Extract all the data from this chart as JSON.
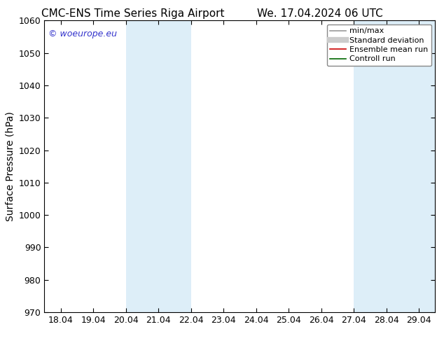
{
  "title_left": "CMC-ENS Time Series Riga Airport",
  "title_right": "We. 17.04.2024 06 UTC",
  "ylabel": "Surface Pressure (hPa)",
  "ylim": [
    970,
    1060
  ],
  "yticks": [
    970,
    980,
    990,
    1000,
    1010,
    1020,
    1030,
    1040,
    1050,
    1060
  ],
  "xtick_labels": [
    "18.04",
    "19.04",
    "20.04",
    "21.04",
    "22.04",
    "23.04",
    "24.04",
    "25.04",
    "26.04",
    "27.04",
    "28.04",
    "29.04"
  ],
  "shaded_bands": [
    {
      "xstart": 2.0,
      "xend": 4.0,
      "color": "#ddeef8"
    },
    {
      "xstart": 9.0,
      "xend": 11.5,
      "color": "#ddeef8"
    }
  ],
  "legend_entries": [
    {
      "label": "min/max",
      "color": "#999999",
      "lw": 1.2
    },
    {
      "label": "Standard deviation",
      "color": "#cccccc",
      "lw": 6
    },
    {
      "label": "Ensemble mean run",
      "color": "#cc0000",
      "lw": 1.2
    },
    {
      "label": "Controll run",
      "color": "#006600",
      "lw": 1.2
    }
  ],
  "copyright_text": "© woeurope.eu",
  "copyright_color": "#3333cc",
  "background_color": "#ffffff",
  "plot_bg_color": "#ffffff",
  "title_fontsize": 11,
  "ylabel_fontsize": 10,
  "tick_fontsize": 9,
  "legend_fontsize": 8
}
